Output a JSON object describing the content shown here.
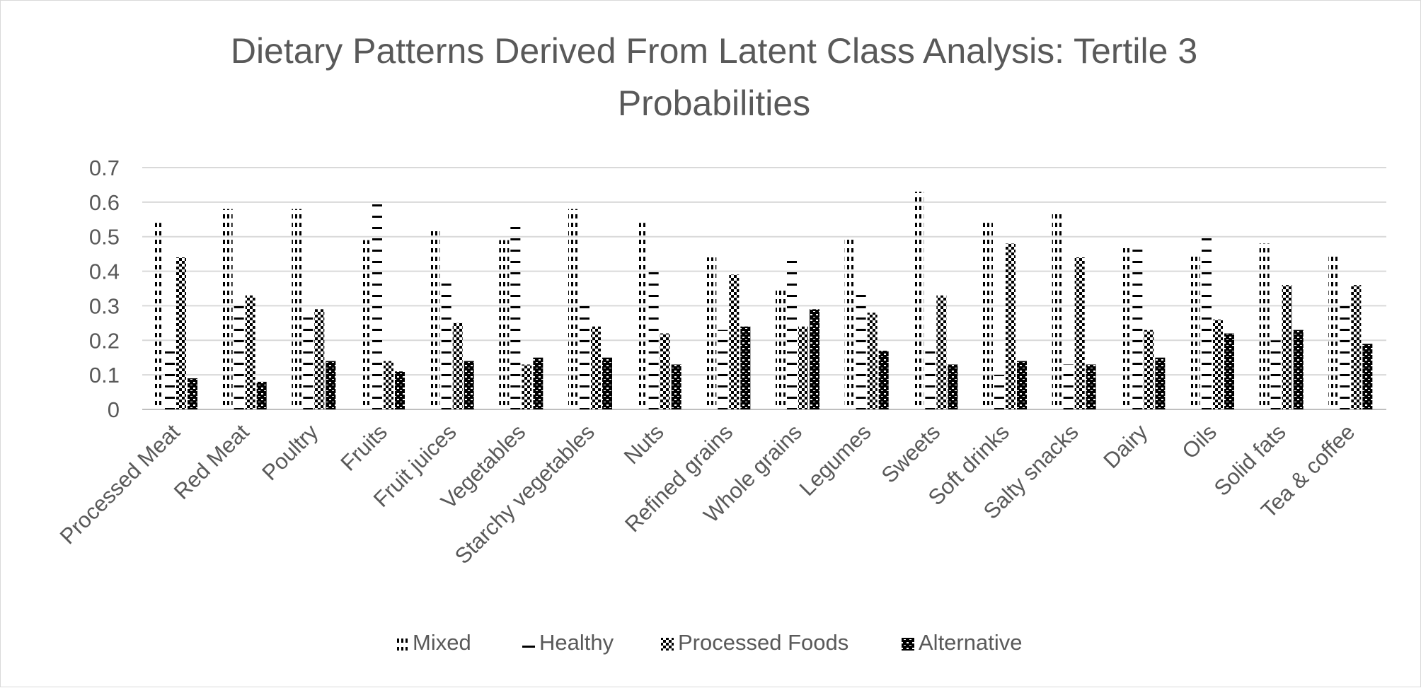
{
  "chart_data": {
    "type": "bar",
    "title_lines": [
      "Dietary Patterns Derived From Latent Class Analysis: Tertile 3",
      "Probabilities"
    ],
    "xlabel": "",
    "ylabel": "",
    "ylim": [
      0,
      0.7
    ],
    "yticks": [
      "0",
      "0.1",
      "0.2",
      "0.3",
      "0.4",
      "0.5",
      "0.6",
      "0.7"
    ],
    "grid": true,
    "legend_position": "bottom",
    "categories": [
      "Processed Meat",
      "Red Meat",
      "Poultry",
      "Fruits",
      "Fruit juices",
      "Vegetables",
      "Starchy vegetables",
      "Nuts",
      "Refined grains",
      "Whole grains",
      "Legumes",
      "Sweets",
      "Soft drinks",
      "Salty snacks",
      "Dairy",
      "Oils",
      "Solid fats",
      "Tea & coffee"
    ],
    "series": [
      {
        "name": "Mixed",
        "pattern": "dots",
        "values": [
          0.54,
          0.58,
          0.58,
          0.49,
          0.52,
          0.49,
          0.58,
          0.54,
          0.44,
          0.35,
          0.5,
          0.63,
          0.54,
          0.57,
          0.47,
          0.45,
          0.48,
          0.45
        ]
      },
      {
        "name": "Healthy",
        "pattern": "dashes",
        "values": [
          0.17,
          0.3,
          0.27,
          0.6,
          0.37,
          0.54,
          0.3,
          0.41,
          0.23,
          0.44,
          0.34,
          0.17,
          0.1,
          0.13,
          0.47,
          0.51,
          0.2,
          0.3
        ]
      },
      {
        "name": "Processed Foods",
        "pattern": "checker",
        "values": [
          0.44,
          0.33,
          0.29,
          0.14,
          0.25,
          0.13,
          0.24,
          0.22,
          0.39,
          0.24,
          0.28,
          0.33,
          0.48,
          0.44,
          0.23,
          0.26,
          0.36,
          0.36
        ]
      },
      {
        "name": "Alternative",
        "pattern": "bricks",
        "values": [
          0.09,
          0.08,
          0.14,
          0.11,
          0.14,
          0.15,
          0.15,
          0.13,
          0.24,
          0.29,
          0.17,
          0.13,
          0.14,
          0.13,
          0.15,
          0.22,
          0.23,
          0.19
        ]
      }
    ]
  }
}
